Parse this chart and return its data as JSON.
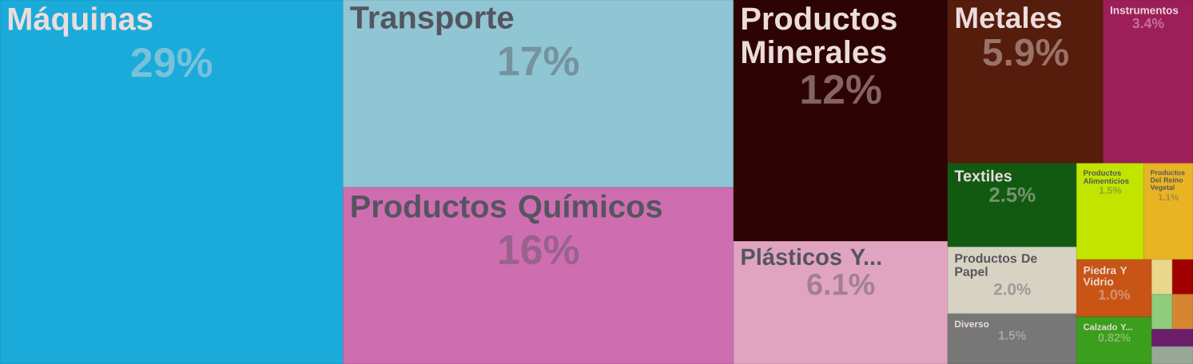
{
  "chart_data": {
    "type": "other",
    "categories": [
      "Máquinas",
      "Transporte",
      "Productos Químicos",
      "Productos Minerales",
      "Plásticos Y...",
      "Metales",
      "Instrumentos",
      "Textiles",
      "Productos De Papel",
      "Diverso",
      "Productos Alimenticios",
      "Productos Del Reino Vegetal",
      "Piedra Y Vidrio",
      "Calzado Y...",
      null,
      null,
      null,
      null,
      null,
      null
    ],
    "values": [
      29,
      17,
      16,
      12,
      6.1,
      5.9,
      3.4,
      2.5,
      2.0,
      1.5,
      1.5,
      1.1,
      1.0,
      0.82,
      null,
      null,
      null,
      null,
      null,
      null
    ],
    "value_labels": [
      "29%",
      "17%",
      "16%",
      "12%",
      "6.1%",
      "5.9%",
      "3.4%",
      "2.5%",
      "2.0%",
      "1.5%",
      "1.5%",
      "1.1%",
      "1.0%",
      "0.82%",
      null,
      null,
      null,
      null,
      null,
      null
    ],
    "colors": [
      "#1aabda",
      "#90c5d3",
      "#cf6db1",
      "#2d0303",
      "#e0a4c0",
      "#561c0c",
      "#9e1e59",
      "#125a12",
      "#d8d2c3",
      "#777777",
      "#c2e500",
      "#e8b423",
      "#c85416",
      "#3b9e1c",
      "#ead78c",
      "#a00000",
      "#8fcc7b",
      "#d68630",
      "#6b1d6b",
      "#9aa89a"
    ]
  }
}
